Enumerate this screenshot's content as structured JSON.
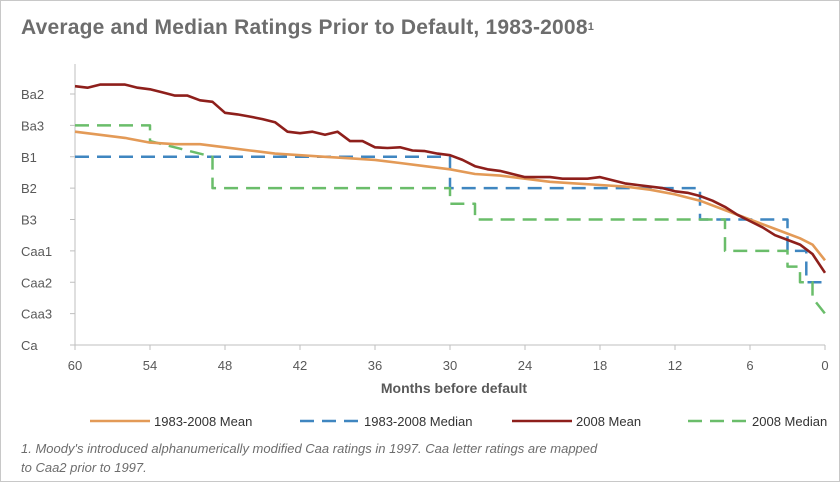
{
  "title": "Average and Median Ratings Prior to Default, 1983-2008",
  "title_superscript": "1",
  "footnote_line1": "1. Moody's introduced alphanumerically modified Caa ratings in 1997. Caa letter ratings are mapped",
  "footnote_line2": "to Caa2 prior to 1997.",
  "chart_data": {
    "type": "line",
    "xlabel": "Months before default",
    "ylabel": "",
    "x_reversed": true,
    "xlim": [
      60,
      0
    ],
    "x_ticks": [
      60,
      54,
      48,
      42,
      36,
      30,
      24,
      18,
      12,
      6,
      0
    ],
    "rating_scale": [
      "Ba2",
      "Ba3",
      "B1",
      "B2",
      "B3",
      "Caa1",
      "Caa2",
      "Caa3",
      "Ca"
    ],
    "ylim_rank": [
      0,
      8
    ],
    "grid": false,
    "legend_position": "bottom",
    "series": [
      {
        "name": "1983-2008 Mean",
        "color": "#e39a57",
        "style": "solid",
        "x": [
          60,
          58,
          56,
          54,
          52,
          50,
          48,
          46,
          44,
          42,
          40,
          38,
          36,
          34,
          32,
          30,
          28,
          26,
          24,
          22,
          20,
          18,
          16,
          14,
          12,
          10,
          8,
          6,
          4,
          3,
          2,
          1,
          0
        ],
        "rank": [
          1.2,
          1.3,
          1.4,
          1.55,
          1.6,
          1.6,
          1.7,
          1.8,
          1.9,
          1.95,
          2.0,
          2.05,
          2.1,
          2.2,
          2.3,
          2.4,
          2.55,
          2.6,
          2.7,
          2.8,
          2.85,
          2.9,
          2.95,
          3.05,
          3.2,
          3.4,
          3.7,
          4.0,
          4.3,
          4.45,
          4.6,
          4.8,
          5.3
        ]
      },
      {
        "name": "1983-2008 Median",
        "color": "#3f86c0",
        "style": "dash",
        "x": [
          60,
          30,
          30,
          10,
          10,
          3,
          3,
          1.5,
          1.5,
          0
        ],
        "rank": [
          2,
          2,
          3,
          3,
          4,
          4,
          5,
          5,
          6,
          6
        ]
      },
      {
        "name": "2008 Mean",
        "color": "#8e1f1b",
        "style": "solid",
        "x": [
          60,
          59,
          58,
          57,
          56,
          55,
          54,
          53,
          52,
          51,
          50,
          49,
          48,
          47,
          46,
          45,
          44,
          43,
          42,
          41,
          40,
          39,
          38,
          37,
          36,
          35,
          34,
          33,
          32,
          31,
          30,
          29,
          28,
          27,
          26,
          25,
          24,
          23,
          22,
          21,
          20,
          19,
          18,
          17,
          16,
          15,
          14,
          13,
          12,
          11,
          10,
          9,
          8,
          7,
          6,
          5,
          4,
          3,
          2,
          1,
          0
        ],
        "rank": [
          -0.25,
          -0.2,
          -0.3,
          -0.3,
          -0.3,
          -0.2,
          -0.15,
          -0.05,
          0.05,
          0.05,
          0.2,
          0.25,
          0.6,
          0.65,
          0.72,
          0.8,
          0.9,
          1.2,
          1.25,
          1.2,
          1.3,
          1.2,
          1.5,
          1.5,
          1.7,
          1.72,
          1.7,
          1.8,
          1.82,
          1.9,
          1.95,
          2.1,
          2.3,
          2.4,
          2.45,
          2.55,
          2.65,
          2.65,
          2.65,
          2.7,
          2.7,
          2.7,
          2.65,
          2.75,
          2.85,
          2.9,
          2.95,
          3.0,
          3.1,
          3.15,
          3.25,
          3.4,
          3.6,
          3.85,
          4.05,
          4.25,
          4.5,
          4.65,
          4.8,
          5.1,
          5.7
        ]
      },
      {
        "name": "2008 Median",
        "color": "#6abd6a",
        "style": "dash",
        "x": [
          60,
          54,
          54,
          49,
          49,
          30,
          30,
          28,
          28,
          8,
          8,
          3,
          3,
          2,
          2,
          1,
          1,
          0
        ],
        "rank": [
          1,
          1,
          1.5,
          2,
          3,
          3,
          3.5,
          3.5,
          4,
          4,
          5,
          5,
          5.5,
          5.5,
          6,
          6,
          6.5,
          7
        ]
      }
    ]
  }
}
